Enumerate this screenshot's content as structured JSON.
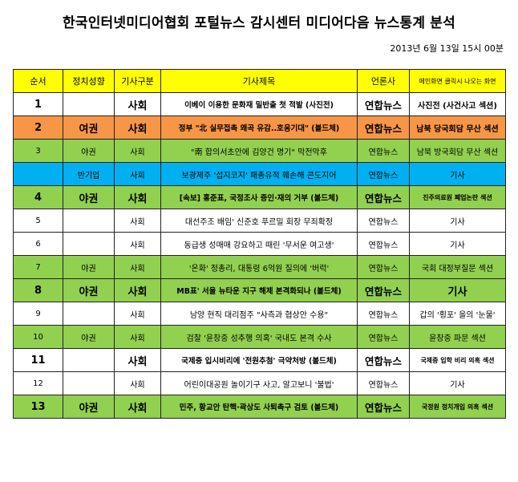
{
  "header": {
    "title": "한국인터넷미디어협회 포털뉴스 감시센터 미디어다음 뉴스통계 분석",
    "date": "2013년 6월  13일 15시 00분"
  },
  "table": {
    "columns": [
      "순서",
      "정치성향",
      "기사구분",
      "기사제목",
      "언론사",
      "메인화면 클릭시 나오는 화면"
    ],
    "rows": [
      {
        "num": "1",
        "pol": "",
        "cat": "사회",
        "title": "이베이 이용한 문화재 밀반출 첫 적발 (사진전)",
        "src": "연합뉴스",
        "place": "사진전 (사건사고 섹션)",
        "style": "white",
        "weight": "bold",
        "place_size": "normal"
      },
      {
        "num": "2",
        "pol": "여권",
        "cat": "사회",
        "title": "정부 \"北 실무접촉 왜곡 유감..호응기대\" (볼드체)",
        "src": "연합뉴스",
        "place": "남북 당국회담 무산 섹션",
        "style": "orange",
        "weight": "bold",
        "place_size": "small"
      },
      {
        "num": "3",
        "pol": "야권",
        "cat": "사회",
        "title": "\"南 합의서초안에 김양건 명기\" 막전막후",
        "src": "연합뉴스",
        "place": "남북 방국회담 무산 섹션",
        "style": "green",
        "weight": "normal",
        "place_size": "normal"
      },
      {
        "num": "",
        "pol": "반기업",
        "cat": "사회",
        "title": "보광제주 '섭지코지' 패총유적 훼손해 콘도지어",
        "src": "연합뉴스",
        "place": "기사",
        "style": "blue",
        "weight": "normal",
        "place_size": "normal"
      },
      {
        "num": "4",
        "pol": "야권",
        "cat": "사회",
        "title": "[속보] 홍준표, 국정조사 증인·재의 거부 (볼드체)",
        "src": "연합뉴스",
        "place": "진주의료원 폐업논란 섹션",
        "style": "green",
        "weight": "bold",
        "place_size": "tiny"
      },
      {
        "num": "5",
        "pol": "",
        "cat": "사회",
        "title": "대선주조 배임' 신준호 푸르밀 회장 무죄확정",
        "src": "연합뉴스",
        "place": "기사",
        "style": "white",
        "weight": "normal",
        "place_size": "normal"
      },
      {
        "num": "6",
        "pol": "",
        "cat": "사회",
        "title": "동급생 성매매 강요하고 때린 '무서운 여고생'",
        "src": "연합뉴스",
        "place": "기사",
        "style": "white",
        "weight": "normal",
        "place_size": "normal"
      },
      {
        "num": "7",
        "pol": "야권",
        "cat": "사회",
        "title": "'온화' 정총리, 대통령 6억원 질의에 '버럭'",
        "src": "연합뉴스",
        "place": "국회 대정부질문 섹션",
        "style": "green",
        "weight": "normal",
        "place_size": "normal"
      },
      {
        "num": "8",
        "pol": "야권",
        "cat": "사회",
        "title": "MB표' 서울 뉴타운 지구 해제 본격화되나 (볼드체)",
        "src": "연합뉴스",
        "place": "기사",
        "style": "green",
        "weight": "bold",
        "place_size": "big"
      },
      {
        "num": "9",
        "pol": "",
        "cat": "사회",
        "title": "남양 현직 대리점주 \"사측과 협상안 수용\"",
        "src": "연합뉴스",
        "place": "갑의 '횡포' 을의 '눈물'",
        "style": "white",
        "weight": "normal",
        "place_size": "normal"
      },
      {
        "num": "10",
        "pol": "야권",
        "cat": "사회",
        "title": "검찰 '윤창중 성추행 의혹' 국내도 본격 수사",
        "src": "연합뉴스",
        "place": "윤창중 파문 섹션",
        "style": "green",
        "weight": "normal",
        "place_size": "normal"
      },
      {
        "num": "11",
        "pol": "",
        "cat": "사회",
        "title": "국제중 입시비리에 '전원추첨' 극약처방 (볼드체)",
        "src": "연합뉴스",
        "place": "국제중 입학 비리 의혹 섹션",
        "style": "white",
        "weight": "bold",
        "place_size": "tiny"
      },
      {
        "num": "12",
        "pol": "",
        "cat": "사회",
        "title": "어린이대공원 놀이기구 사고, 알고보니 '불법'",
        "src": "연합뉴스",
        "place": "기사",
        "style": "white",
        "weight": "normal",
        "place_size": "normal"
      },
      {
        "num": "13",
        "pol": "야권",
        "cat": "사회",
        "title": "민주, 황교안 탄핵·곽상도 사퇴촉구 검토 (볼드체)",
        "src": "연합뉴스",
        "place": "국정원 정치개입 의혹 섹션",
        "style": "green",
        "weight": "bold",
        "place_size": "tiny"
      }
    ]
  }
}
